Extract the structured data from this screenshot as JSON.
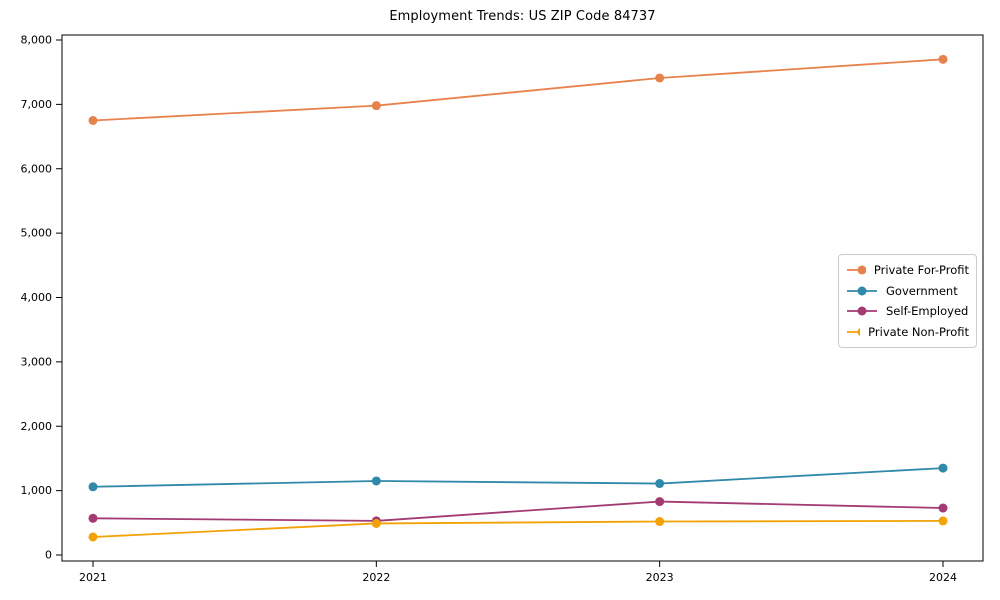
{
  "figure": {
    "background_color": "#ffffff",
    "spine_color": "#000000",
    "tick_label_color": "#000000"
  },
  "chart_data": {
    "type": "line",
    "title": "Employment Trends: US ZIP Code 84737",
    "xlabel": "",
    "ylabel": "",
    "grid": false,
    "legend_position": "center right",
    "x": [
      "2021",
      "2022",
      "2023",
      "2024"
    ],
    "ylim": [
      0,
      8000
    ],
    "ytick_step": 1000,
    "ytick_labels": [
      "0",
      "1,000",
      "2,000",
      "3,000",
      "4,000",
      "5,000",
      "6,000",
      "7,000",
      "8,000"
    ],
    "series": [
      {
        "name": "Private For-Profit",
        "color": "#E8824D",
        "values": [
          6750,
          6980,
          7410,
          7700
        ]
      },
      {
        "name": "Government",
        "color": "#3089A8",
        "values": [
          1060,
          1150,
          1110,
          1350
        ]
      },
      {
        "name": "Self-Employed",
        "color": "#A33A72",
        "values": [
          570,
          530,
          830,
          730
        ]
      },
      {
        "name": "Private Non-Profit",
        "color": "#F3A205",
        "values": [
          280,
          490,
          520,
          530
        ]
      }
    ]
  }
}
